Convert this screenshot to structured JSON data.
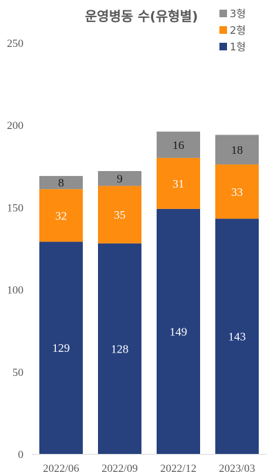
{
  "chart_data": {
    "type": "bar",
    "stacked": true,
    "title": "운영병동 수(유형별)",
    "categories": [
      "2022/06",
      "2022/09",
      "2022/12",
      "2023/03"
    ],
    "series": [
      {
        "name": "1형",
        "color": "#27417f",
        "label_color": "#ffffff",
        "values": [
          129,
          128,
          149,
          143
        ]
      },
      {
        "name": "2형",
        "color": "#fd8c0f",
        "label_color": "#ffffff",
        "values": [
          32,
          35,
          31,
          33
        ]
      },
      {
        "name": "3형",
        "color": "#8f8f8f",
        "label_color": "#1a1a1a",
        "values": [
          8,
          9,
          16,
          18
        ]
      }
    ],
    "ylim": [
      0,
      250
    ],
    "yticks": [
      0,
      50,
      100,
      150,
      200,
      250
    ],
    "xlabel": "",
    "ylabel": "",
    "grid": false,
    "legend": {
      "position": "top-right",
      "order": [
        "3형",
        "2형",
        "1형"
      ]
    }
  }
}
